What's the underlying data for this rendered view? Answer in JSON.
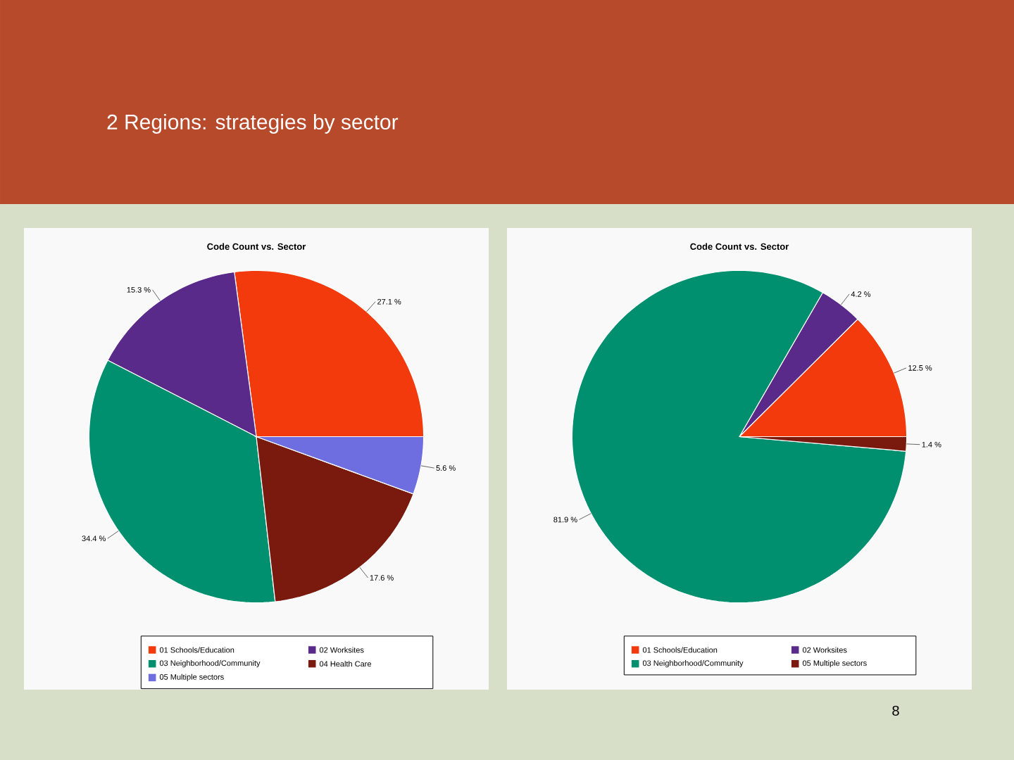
{
  "chart_data": [
    {
      "type": "pie",
      "title": "Code Count vs. Sector",
      "annotations": [
        "2 Regions: strategies by sector"
      ],
      "categories": [
        "01 Schools/Education",
        "02 Worksites",
        "03 Neighborhood/Community",
        "04 Health Care",
        "05 Multiple sectors"
      ],
      "values": [
        27.1,
        15.3,
        34.4,
        17.6,
        5.6
      ],
      "value_labels": [
        "27.1 %",
        "15.3 %",
        "34.4 %",
        "17.6 %",
        "5.6 %"
      ],
      "colors": [
        "#f23a0c",
        "#5a2a8a",
        "#009070",
        "#7a1a0e",
        "#6e6ee0"
      ],
      "legend": "bottom"
    },
    {
      "type": "pie",
      "title": "Code Count vs. Sector",
      "annotations": [
        "8"
      ],
      "categories": [
        "01 Schools/Education",
        "02 Worksites",
        "03 Neighborhood/Community",
        "05 Multiple sectors"
      ],
      "values": [
        12.5,
        4.2,
        81.9,
        1.4
      ],
      "value_labels": [
        "12.5 %",
        "4.2 %",
        "81.9 %",
        "1.4 %"
      ],
      "colors": [
        "#f23a0c",
        "#5a2a8a",
        "#009070",
        "#7a1a0e"
      ],
      "legend": "bottom"
    }
  ]
}
